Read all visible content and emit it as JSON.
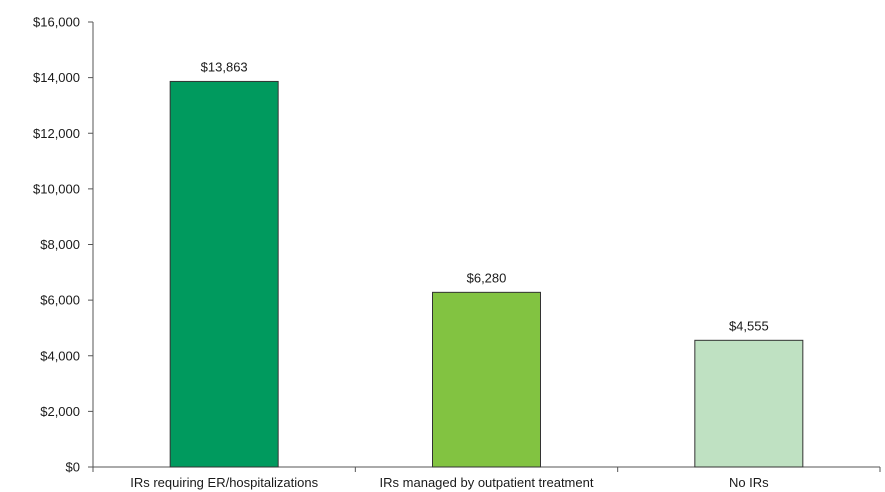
{
  "chart_data": {
    "type": "bar",
    "title": "",
    "xlabel": "",
    "ylabel": "",
    "categories": [
      "IRs requiring ER/hospitalizations",
      "IRs managed by outpatient treatment",
      "No IRs"
    ],
    "values": [
      13863,
      6280,
      4555
    ],
    "data_labels": [
      "$13,863",
      "$6,280",
      "$4,555"
    ],
    "bar_colors": [
      "#009a5e",
      "#82c341",
      "#bfe1c2"
    ],
    "ylim": [
      0,
      16000
    ],
    "yticks": [
      0,
      2000,
      4000,
      6000,
      8000,
      10000,
      12000,
      14000,
      16000
    ],
    "ytick_labels": [
      "$0",
      "$2,000",
      "$4,000",
      "$6,000",
      "$8,000",
      "$10,000",
      "$12,000",
      "$14,000",
      "$16,000"
    ],
    "grid": false,
    "legend": "none"
  }
}
